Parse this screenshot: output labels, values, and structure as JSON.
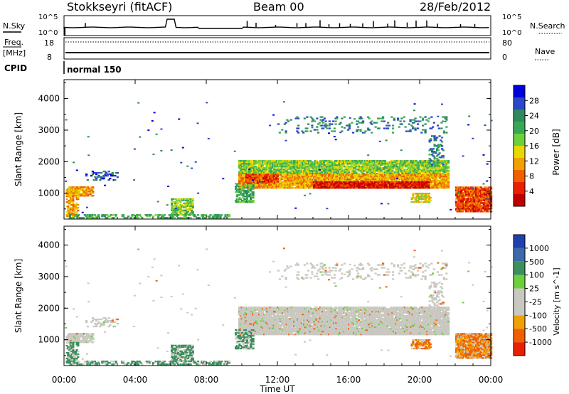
{
  "header": {
    "station": "Stokkseyri (fitACF)",
    "beam": "Beam 00",
    "date": "28/Feb/2012"
  },
  "status_panels": {
    "nsky_label": "N.Sky",
    "nsky_ticks": [
      "10^5",
      "10^0"
    ],
    "nsearch_label": "N.Search",
    "nsearch_ticks": [
      "10^5",
      "10^0"
    ],
    "freq_label_top": "Freq.",
    "freq_label_bottom": "[MHz]",
    "freq_ticks": [
      "18",
      "8"
    ],
    "nave_label": "Nave",
    "nave_ticks": [
      "80",
      "0"
    ],
    "cpid_label": "CPID",
    "cpid_value": "normal 150"
  },
  "chart_data": [
    {
      "type": "heatmap",
      "name": "power",
      "ylabel": "Slant Range [km]",
      "xlabel": "Time UT",
      "yticks": [
        "4000",
        "3000",
        "2000",
        "1000"
      ],
      "ylim": [
        180,
        4600
      ],
      "xlim_hours": [
        0,
        24
      ],
      "colorbar_label": "Power [dB]",
      "colorbar_ticks": [
        "28",
        "24",
        "20",
        "16",
        "12",
        "8",
        "4"
      ],
      "colorbar_colors": [
        "#0000dd",
        "#2a48c8",
        "#2f8a60",
        "#38a855",
        "#6ccf3c",
        "#e8d800",
        "#f0a000",
        "#f06000",
        "#e82000",
        "#c00000"
      ],
      "regions": [
        {
          "t0": 9.8,
          "t1": 21.6,
          "r0": 1150,
          "r1": 2050,
          "level": "mixed-high"
        },
        {
          "t0": 14.0,
          "t1": 20.5,
          "r0": 1150,
          "r1": 1350,
          "level": "high"
        },
        {
          "t0": 22.0,
          "t1": 24.0,
          "r0": 400,
          "r1": 1200,
          "level": "high"
        },
        {
          "t0": 0.1,
          "t1": 1.6,
          "r0": 900,
          "r1": 1200,
          "level": "mixed-high"
        }
      ]
    },
    {
      "type": "heatmap",
      "name": "velocity",
      "ylabel": "Slant Range [km]",
      "xlabel": "Time UT",
      "yticks": [
        "4000",
        "3000",
        "2000",
        "1000"
      ],
      "ylim": [
        180,
        4600
      ],
      "xlim_hours": [
        0,
        24
      ],
      "colorbar_label": "Velocity [m s^-1]",
      "colorbar_ticks": [
        "1000",
        "500",
        "100",
        "25",
        "-25",
        "-100",
        "-500",
        "-1000"
      ],
      "colorbar_colors": [
        "#2040b0",
        "#3c6aa8",
        "#3e8f5e",
        "#6ccf3c",
        "#c8c8c0",
        "#c8c8c0",
        "#f0a000",
        "#f06000",
        "#e82000"
      ],
      "regions": [
        {
          "t0": 9.8,
          "t1": 21.6,
          "r0": 1150,
          "r1": 2050,
          "level": "gray"
        },
        {
          "t0": 22.0,
          "t1": 24.0,
          "r0": 400,
          "r1": 1200,
          "level": "orange"
        },
        {
          "t0": 6.0,
          "t1": 7.2,
          "r0": 300,
          "r1": 800,
          "level": "green"
        },
        {
          "t0": 19.5,
          "t1": 20.5,
          "r0": 700,
          "r1": 1000,
          "level": "orange"
        }
      ]
    }
  ],
  "time_axis": {
    "ticks": [
      "00:00",
      "04:00",
      "08:00",
      "12:00",
      "16:00",
      "20:00",
      "00:00"
    ],
    "label": "Time UT"
  },
  "colors": {
    "gray_scatter": "#c8c8c0",
    "line": "#000000"
  }
}
